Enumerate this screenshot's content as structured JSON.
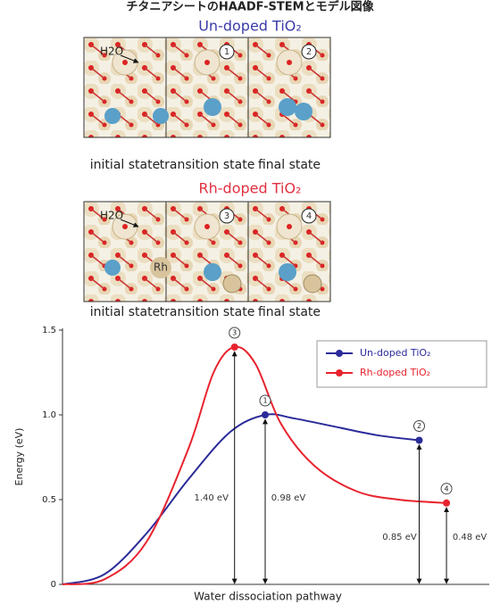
{
  "header": "チタニアシートのHAADF-STEMとモデル図像",
  "panel_sets": [
    {
      "title": "Un-doped TiO₂",
      "water": "H2O",
      "steps": [
        "1",
        "2"
      ],
      "states": [
        "initial state",
        "transition state",
        "final state"
      ]
    },
    {
      "title": "Rh-doped TiO₂",
      "water": "H2O",
      "dopant": "Rh",
      "steps": [
        "3",
        "4"
      ],
      "states": [
        "initial state",
        "transition state",
        "final state"
      ]
    }
  ],
  "chart_data": {
    "type": "line",
    "ylabel": "Energy (eV)",
    "xlabel": "Water dissociation pathway",
    "xlim": [
      0,
      10
    ],
    "ylim": [
      0,
      1.5
    ],
    "yticks": [
      0,
      0.5,
      {
        "value": 1,
        "label": "1.0"
      },
      1.5
    ],
    "legend": "upper right",
    "series": [
      {
        "name": "Un-doped TiO₂",
        "color": "#2b2b9a",
        "x": [
          0,
          1,
          2,
          3,
          4,
          4.83,
          5.5,
          6.5,
          7.5,
          8.5
        ],
        "values": [
          0,
          0.06,
          0.3,
          0.62,
          0.9,
          1.0,
          0.98,
          0.93,
          0.88,
          0.85
        ]
      },
      {
        "name": "Rh-doped TiO₂",
        "color": "#e8232e",
        "x": [
          0,
          1,
          2,
          3,
          3.6,
          4.1,
          4.6,
          5.2,
          6,
          7,
          8,
          9.15
        ],
        "values": [
          0,
          0.03,
          0.25,
          0.8,
          1.25,
          1.4,
          1.3,
          0.95,
          0.7,
          0.55,
          0.5,
          0.48
        ]
      }
    ],
    "annotations": [
      "1.40 eV",
      "0.98 eV",
      "0.85 eV",
      "0.48 eV"
    ],
    "markers": [
      "3",
      "1",
      "2",
      "4"
    ]
  }
}
